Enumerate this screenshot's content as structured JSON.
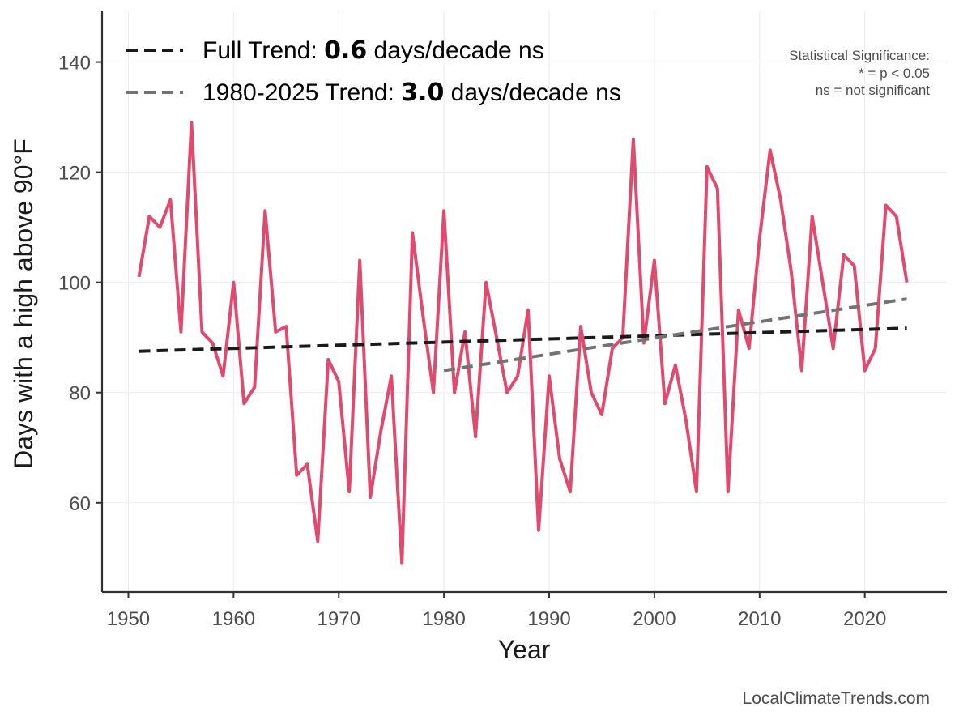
{
  "chart_data": {
    "type": "line",
    "xlabel": "Year",
    "ylabel": "Days with a high above 90°F",
    "xlim": [
      1947.5,
      2027.8
    ],
    "ylim": [
      43.8,
      149.2
    ],
    "xticks": [
      1950,
      1960,
      1970,
      1980,
      1990,
      2000,
      2010,
      2020
    ],
    "yticks": [
      60,
      80,
      100,
      120,
      140
    ],
    "grid": true,
    "legend_position": "top-left",
    "series": [
      {
        "kind": "observed",
        "color": "#e04a6e",
        "x": [
          1951,
          1952,
          1953,
          1954,
          1955,
          1956,
          1957,
          1958,
          1959,
          1960,
          1961,
          1962,
          1963,
          1964,
          1965,
          1966,
          1967,
          1968,
          1969,
          1970,
          1971,
          1972,
          1973,
          1974,
          1975,
          1976,
          1977,
          1978,
          1979,
          1980,
          1981,
          1982,
          1983,
          1984,
          1985,
          1986,
          1987,
          1988,
          1989,
          1990,
          1991,
          1992,
          1993,
          1994,
          1995,
          1996,
          1997,
          1998,
          1999,
          2000,
          2001,
          2002,
          2003,
          2004,
          2005,
          2006,
          2007,
          2008,
          2009,
          2010,
          2011,
          2012,
          2013,
          2014,
          2015,
          2016,
          2017,
          2018,
          2019,
          2020,
          2021,
          2022,
          2023,
          2024
        ],
        "y": [
          101,
          112,
          110,
          115,
          91,
          129,
          91,
          89,
          83,
          100,
          78,
          81,
          113,
          91,
          92,
          65,
          67,
          53,
          86,
          82,
          62,
          104,
          61,
          73,
          83,
          49,
          109,
          94,
          80,
          113,
          80,
          91,
          72,
          100,
          90,
          80,
          83,
          95,
          55,
          83,
          68,
          62,
          92,
          80,
          76,
          88,
          90,
          126,
          89,
          104,
          78,
          85,
          75,
          62,
          121,
          117,
          62,
          95,
          88,
          108,
          124,
          115,
          102,
          84,
          112,
          100,
          88,
          105,
          103,
          84,
          88,
          114,
          112,
          100
        ]
      },
      {
        "name": "Full Trend",
        "kind": "trend",
        "color": "#1a1a1a",
        "dash": true,
        "x": [
          1951,
          2024
        ],
        "y": [
          87.5,
          91.7
        ]
      },
      {
        "name": "1980-2025 Trend",
        "kind": "trend",
        "color": "#737373",
        "dash": true,
        "x": [
          1980,
          2024
        ],
        "y": [
          84.0,
          97.0
        ]
      }
    ]
  },
  "legend": [
    {
      "prefix": "Full Trend: ",
      "value": "0.6",
      "suffix": " days/decade ns",
      "color": "#1a1a1a"
    },
    {
      "prefix": "1980-2025 Trend: ",
      "value": "3.0",
      "suffix": " days/decade ns",
      "color": "#737373"
    }
  ],
  "significance_note": [
    "Statistical Significance:",
    "* = p < 0.05",
    "ns = not significant"
  ],
  "credit": "LocalClimateTrends.com"
}
